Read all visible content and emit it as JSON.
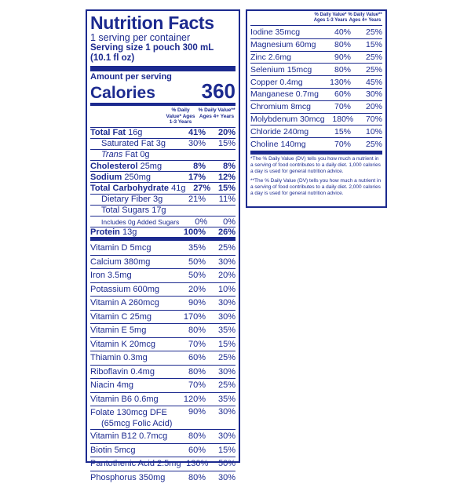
{
  "panel_left": {
    "title": "Nutrition Facts",
    "servings_per_container": "1 serving per container",
    "serving_size": "Serving size 1 pouch 300 mL (10.1 fl oz)",
    "amount_per_serving": "Amount per serving",
    "calories_label": "Calories",
    "calories_value": "360",
    "dv_header_1": "% Daily Value* Ages 1-3 Years",
    "dv_header_2": "% Daily Value** Ages 4+ Years",
    "main_rows": [
      {
        "label": "Total Fat",
        "amount": " 16g",
        "dv1": "41%",
        "dv2": "20%"
      },
      {
        "label": "",
        "amount": "Saturated Fat 3g",
        "dv1": "30%",
        "dv2": "15%"
      },
      {
        "label": "",
        "amount": "Trans Fat 0g",
        "dv1": "",
        "dv2": ""
      },
      {
        "label": "Cholesterol",
        "amount": " 25mg",
        "dv1": "8%",
        "dv2": "8%"
      },
      {
        "label": "Sodium",
        "amount": " 250mg",
        "dv1": "17%",
        "dv2": "12%"
      },
      {
        "label": "Total Carbohydrate",
        "amount": " 41g",
        "dv1": "27%",
        "dv2": "15%"
      },
      {
        "label": "",
        "amount": "Dietary Fiber 3g",
        "dv1": "21%",
        "dv2": "11%"
      },
      {
        "label": "",
        "amount": "Total Sugars 17g",
        "dv1": "",
        "dv2": ""
      },
      {
        "label": "",
        "amount": "Includes 0g Added Sugars",
        "dv1": "0%",
        "dv2": "0%"
      },
      {
        "label": "Protein",
        "amount": " 13g",
        "dv1": "100%",
        "dv2": "26%"
      }
    ],
    "vitamins": [
      {
        "name": "Vitamin D 5mcg",
        "dv1": "35%",
        "dv2": "25%"
      },
      {
        "name": "Calcium 380mg",
        "dv1": "50%",
        "dv2": "30%"
      },
      {
        "name": "Iron 3.5mg",
        "dv1": "50%",
        "dv2": "20%"
      },
      {
        "name": "Potassium 600mg",
        "dv1": "20%",
        "dv2": "10%"
      },
      {
        "name": "Vitamin A 260mcg",
        "dv1": "90%",
        "dv2": "30%"
      },
      {
        "name": "Vitamin C 25mg",
        "dv1": "170%",
        "dv2": "30%"
      },
      {
        "name": "Vitamin E 5mg",
        "dv1": "80%",
        "dv2": "35%"
      },
      {
        "name": "Vitamin K 20mcg",
        "dv1": "70%",
        "dv2": "15%"
      },
      {
        "name": "Thiamin 0.3mg",
        "dv1": "60%",
        "dv2": "25%"
      },
      {
        "name": "Riboflavin 0.4mg",
        "dv1": "80%",
        "dv2": "30%"
      },
      {
        "name": "Niacin 4mg",
        "dv1": "70%",
        "dv2": "25%"
      },
      {
        "name": "Vitamin B6 0.6mg",
        "dv1": "120%",
        "dv2": "35%"
      },
      {
        "name": "Folate 130mcg DFE (65mcg Folic Acid)",
        "dv1": "90%",
        "dv2": "30%"
      },
      {
        "name": "Vitamin B12 0.7mcg",
        "dv1": "80%",
        "dv2": "30%"
      },
      {
        "name": "Biotin 5mcg",
        "dv1": "60%",
        "dv2": "15%"
      },
      {
        "name": "Pantothenic Acid 2.5mg",
        "dv1": "130%",
        "dv2": "50%"
      },
      {
        "name": "Phosphorus 350mg",
        "dv1": "80%",
        "dv2": "30%"
      }
    ]
  },
  "panel_right": {
    "dv_header_1": "% Daily Value* Ages 1-3 Years",
    "dv_header_2": "% Daily Value** Ages 4+ Years",
    "minerals": [
      {
        "name": "Iodine 35mcg",
        "dv1": "40%",
        "dv2": "25%"
      },
      {
        "name": "Magnesium 60mg",
        "dv1": "80%",
        "dv2": "15%"
      },
      {
        "name": "Zinc 2.6mg",
        "dv1": "90%",
        "dv2": "25%"
      },
      {
        "name": "Selenium 15mcg",
        "dv1": "80%",
        "dv2": "25%"
      },
      {
        "name": "Copper 0.4mg",
        "dv1": "130%",
        "dv2": "45%"
      },
      {
        "name": "Manganese 0.7mg",
        "dv1": "60%",
        "dv2": "30%"
      },
      {
        "name": "Chromium 8mcg",
        "dv1": "70%",
        "dv2": "20%"
      },
      {
        "name": "Molybdenum 30mcg",
        "dv1": "180%",
        "dv2": "70%"
      },
      {
        "name": "Chloride 240mg",
        "dv1": "15%",
        "dv2": "10%"
      },
      {
        "name": "Choline 140mg",
        "dv1": "70%",
        "dv2": "25%"
      }
    ],
    "footnote_1": "*The % Daily Value (DV) tells you how much a nutrient in a serving of food contributes to a daily diet. 1,000 calories a day is used for general nutrition advice.",
    "footnote_2": "**The % Daily Value (DV) tells you how much a nutrient in a serving of food contributes to a daily diet. 2,000 calories a day is used for general nutrition advice."
  }
}
